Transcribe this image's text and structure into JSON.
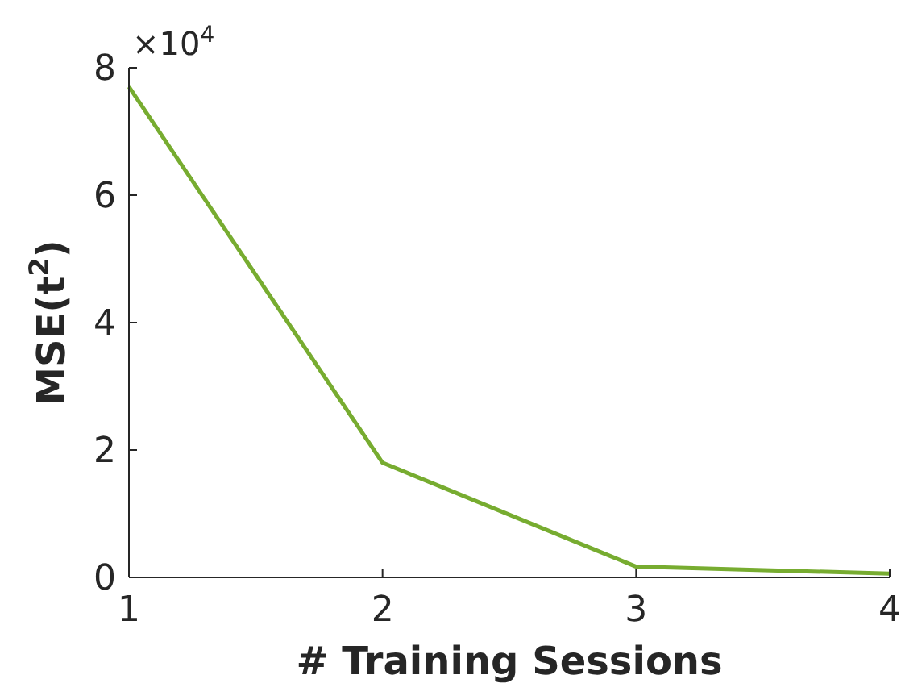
{
  "chart_data": {
    "type": "line",
    "xlabel": "# Training Sessions",
    "ylabel": "MSE(t$^{2}$)",
    "x": [
      1,
      2,
      3,
      4
    ],
    "series": [
      {
        "color": "#77ac30",
        "values": [
          7.7,
          1.8,
          0.17,
          0.06
        ]
      }
    ],
    "xlim": [
      1,
      4
    ],
    "xticks": [
      1,
      2,
      3,
      4
    ],
    "ylim": [
      0,
      8
    ],
    "yticks": [
      0,
      2,
      4,
      6,
      8
    ],
    "annotations": [
      "×10$^{4}$"
    ],
    "grid": false,
    "marker": "none",
    "line_style": "solid"
  }
}
